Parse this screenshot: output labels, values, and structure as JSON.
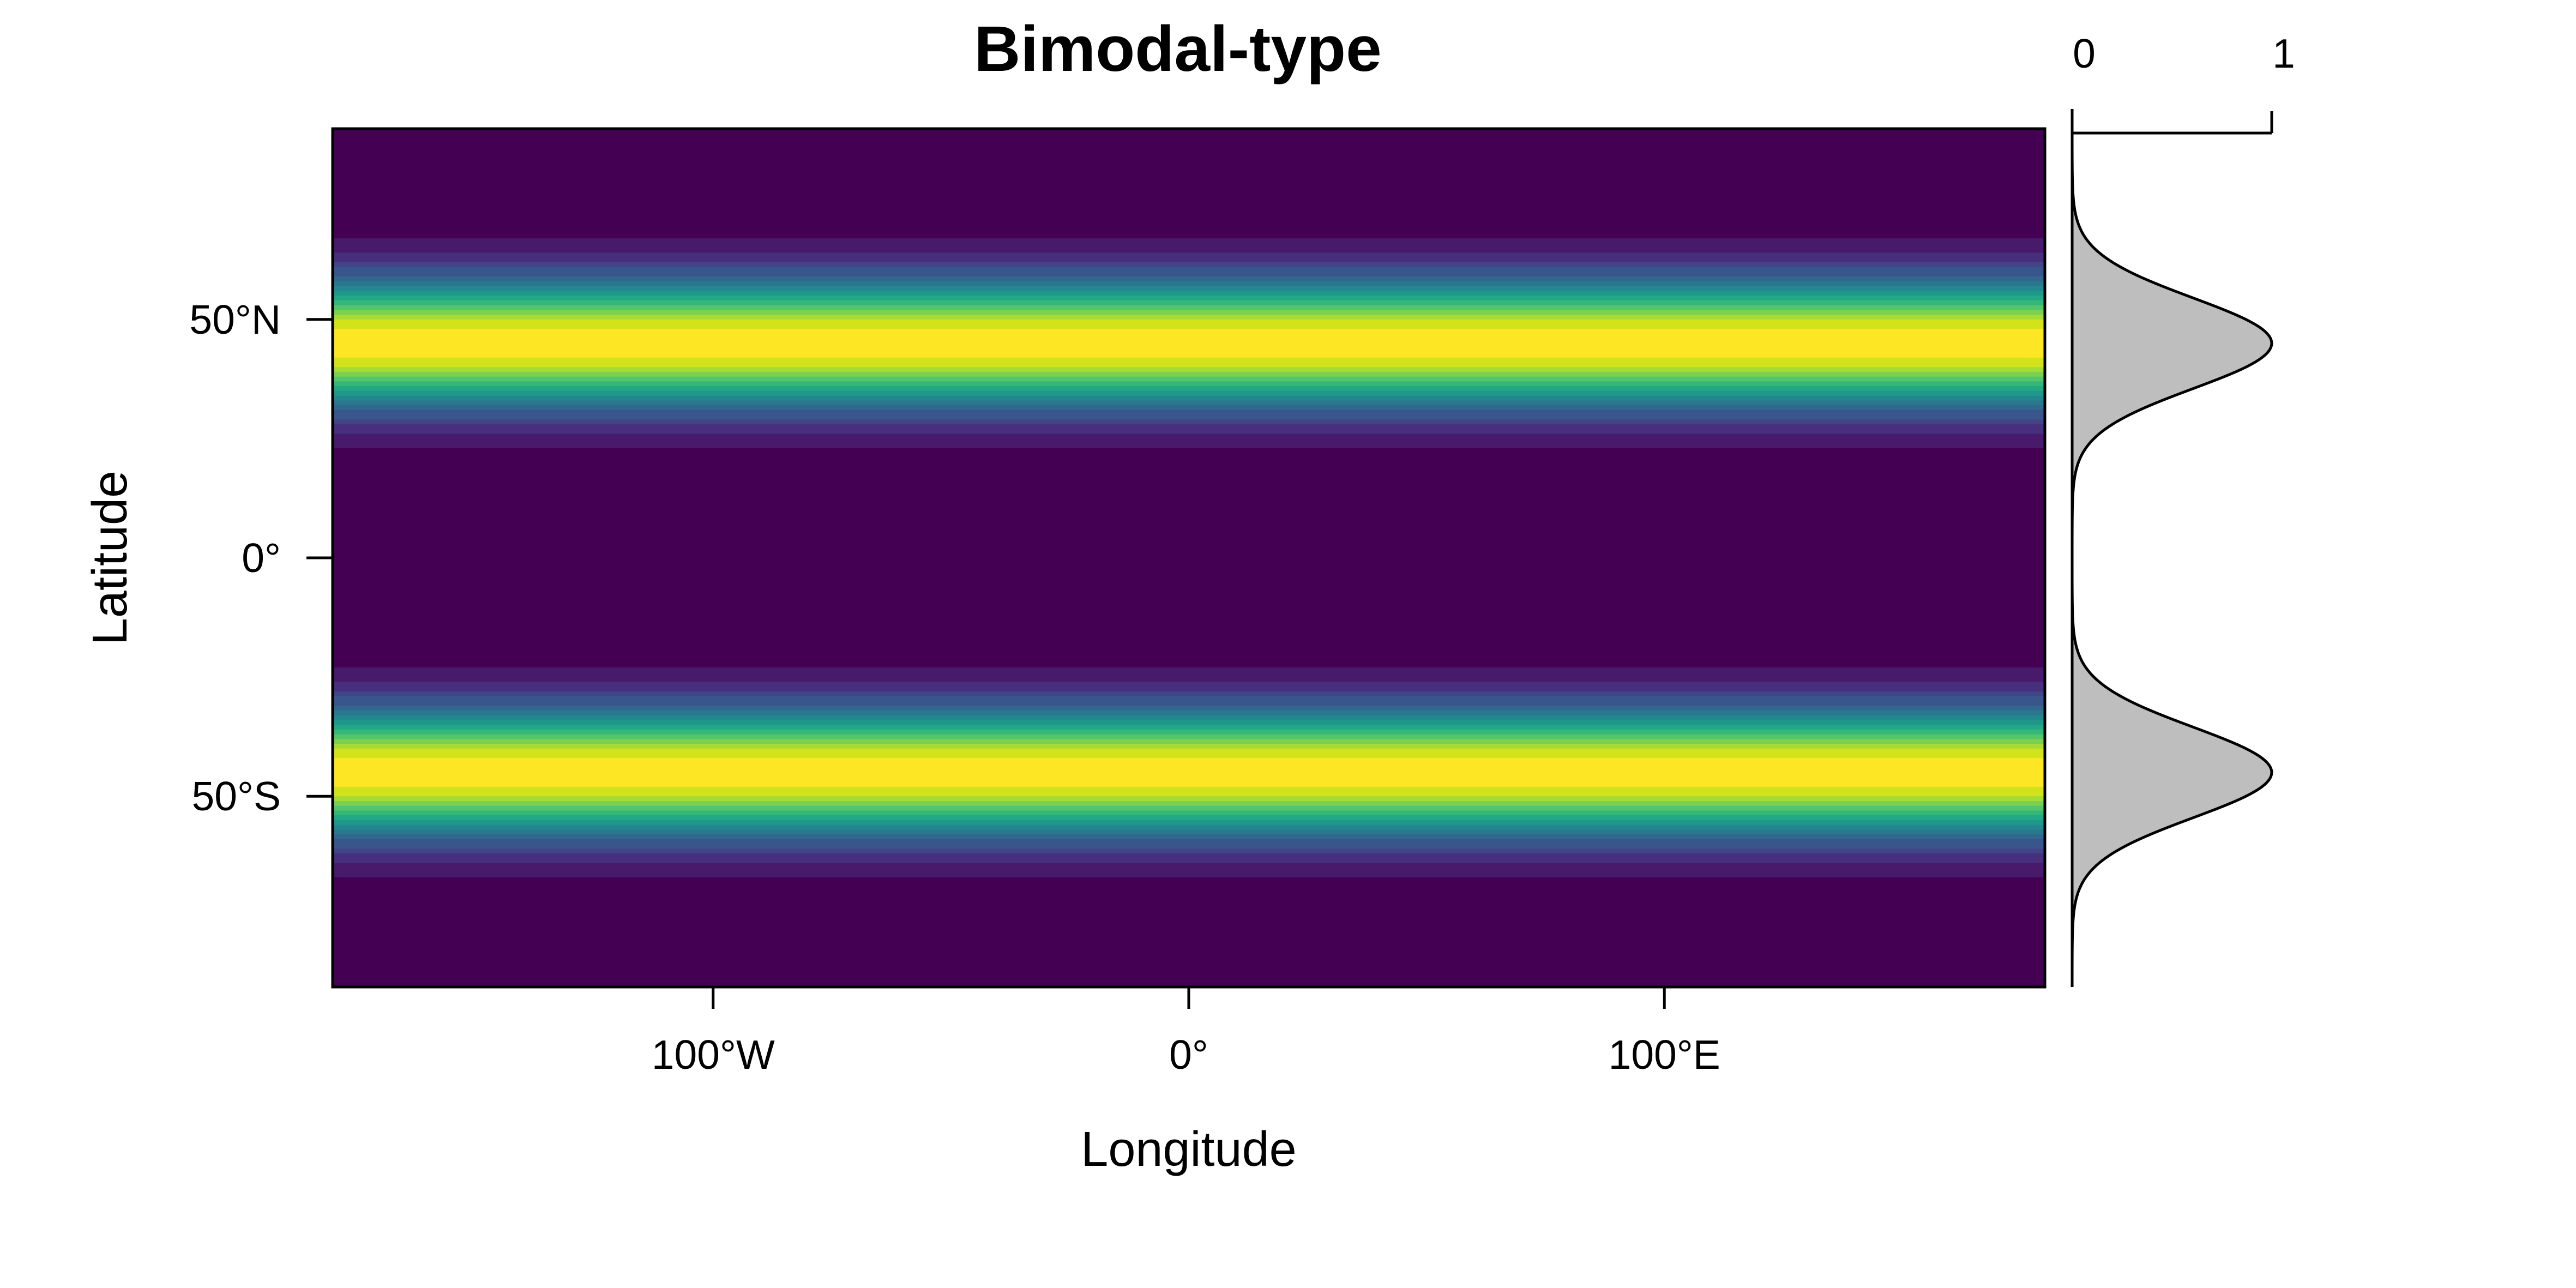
{
  "chart_data": {
    "type": "heatmap",
    "title": "Bimodal-type",
    "xlabel": "Longitude",
    "ylabel": "Latitude",
    "xlim": [
      -180,
      180
    ],
    "ylim": [
      -90,
      90
    ],
    "x_ticks": [
      {
        "value": -100,
        "label": "100°W"
      },
      {
        "value": 0,
        "label": "0°"
      },
      {
        "value": 100,
        "label": "100°E"
      }
    ],
    "y_ticks": [
      {
        "value": 50,
        "label": "50°N"
      },
      {
        "value": 0,
        "label": "0°"
      },
      {
        "value": -50,
        "label": "50°S"
      }
    ],
    "colormap": "viridis",
    "palette": [
      "#440154",
      "#481A6C",
      "#472F7D",
      "#414487",
      "#39568C",
      "#31688E",
      "#2A788E",
      "#23888E",
      "#1F988B",
      "#22A884",
      "#35B779",
      "#54C568",
      "#7AD151",
      "#A5DB36",
      "#D2E21B",
      "#FDE725"
    ],
    "band_centers": [
      45,
      -45
    ],
    "band_sigma": 9.5,
    "profile": {
      "type": "area",
      "fill": "#BEBEBE",
      "scale_ticks": [
        {
          "value": 0,
          "label": "0"
        },
        {
          "value": 1,
          "label": "1"
        }
      ],
      "peaks_latitude": [
        45,
        -45
      ],
      "peak_value": 1,
      "description_min_value": 0
    }
  }
}
